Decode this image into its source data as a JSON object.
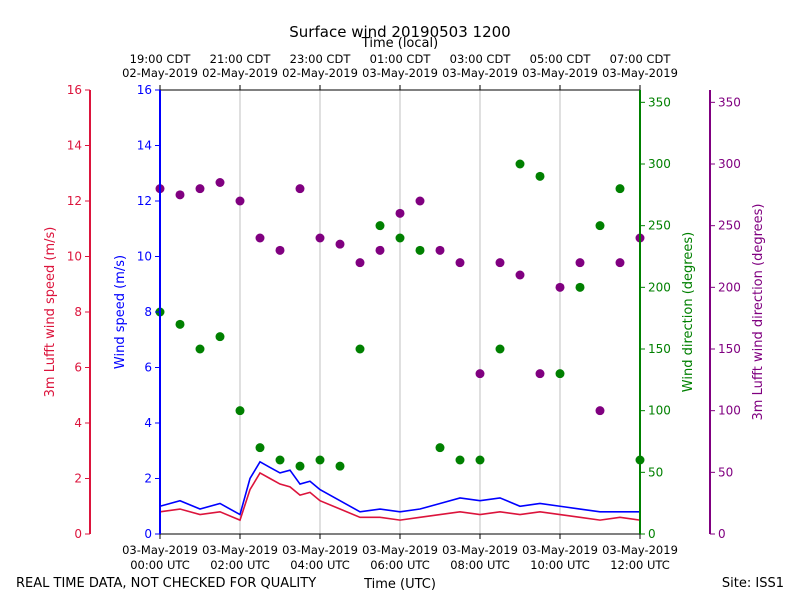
{
  "chart_data": {
    "type": "scatter",
    "title": "Surface wind 20190503 1200",
    "top_axis_label": "Time (local)",
    "bottom_axis_label": "Time (UTC)",
    "footer_left": "REAL TIME DATA, NOT CHECKED FOR QUALITY",
    "footer_right": "Site: ISS1",
    "x_utc_hours_range": [
      0,
      12
    ],
    "bottom_ticks": [
      {
        "h": 0,
        "date": "03-May-2019",
        "time": "00:00 UTC"
      },
      {
        "h": 2,
        "date": "03-May-2019",
        "time": "02:00 UTC"
      },
      {
        "h": 4,
        "date": "03-May-2019",
        "time": "04:00 UTC"
      },
      {
        "h": 6,
        "date": "03-May-2019",
        "time": "06:00 UTC"
      },
      {
        "h": 8,
        "date": "03-May-2019",
        "time": "08:00 UTC"
      },
      {
        "h": 10,
        "date": "03-May-2019",
        "time": "10:00 UTC"
      },
      {
        "h": 12,
        "date": "03-May-2019",
        "time": "12:00 UTC"
      }
    ],
    "top_ticks": [
      {
        "h": 0,
        "time": "19:00 CDT",
        "date": "02-May-2019"
      },
      {
        "h": 2,
        "time": "21:00 CDT",
        "date": "02-May-2019"
      },
      {
        "h": 4,
        "time": "23:00 CDT",
        "date": "02-May-2019"
      },
      {
        "h": 6,
        "time": "01:00 CDT",
        "date": "03-May-2019"
      },
      {
        "h": 8,
        "time": "03:00 CDT",
        "date": "03-May-2019"
      },
      {
        "h": 10,
        "time": "05:00 CDT",
        "date": "03-May-2019"
      },
      {
        "h": 12,
        "time": "07:00 CDT",
        "date": "03-May-2019"
      }
    ],
    "axes": {
      "lufft_speed": {
        "label": "3m Lufft wind speed (m/s)",
        "color": "#dc143c",
        "ylim": [
          0,
          16
        ],
        "ticks": [
          0,
          2,
          4,
          6,
          8,
          10,
          12,
          14,
          16
        ]
      },
      "wind_speed": {
        "label": "Wind speed (m/s)",
        "color": "#0000ff",
        "ylim": [
          0,
          16
        ],
        "ticks": [
          0,
          2,
          4,
          6,
          8,
          10,
          12,
          14,
          16
        ]
      },
      "wind_dir": {
        "label": "Wind direction (degrees)",
        "color": "#008000",
        "ylim": [
          0,
          360
        ],
        "ticks": [
          0,
          50,
          100,
          150,
          200,
          250,
          300,
          350
        ]
      },
      "lufft_dir": {
        "label": "3m Lufft wind direction (degrees)",
        "color": "#800080",
        "ylim": [
          0,
          360
        ],
        "ticks": [
          0,
          50,
          100,
          150,
          200,
          250,
          300,
          350
        ]
      }
    },
    "series": [
      {
        "name": "Wind speed",
        "axis": "wind_speed",
        "style": "line",
        "x": [
          0,
          0.5,
          1,
          1.5,
          2,
          2.25,
          2.5,
          2.75,
          3,
          3.25,
          3.5,
          3.75,
          4,
          4.5,
          5,
          5.5,
          6,
          6.5,
          7,
          7.5,
          8,
          8.5,
          9,
          9.5,
          10,
          10.5,
          11,
          11.5,
          12
        ],
        "values": [
          1.0,
          1.2,
          0.9,
          1.1,
          0.7,
          2.0,
          2.6,
          2.4,
          2.2,
          2.3,
          1.8,
          1.9,
          1.6,
          1.2,
          0.8,
          0.9,
          0.8,
          0.9,
          1.1,
          1.3,
          1.2,
          1.3,
          1.0,
          1.1,
          1.0,
          0.9,
          0.8,
          0.8,
          0.8
        ]
      },
      {
        "name": "3m Lufft wind speed",
        "axis": "lufft_speed",
        "style": "line",
        "x": [
          0,
          0.5,
          1,
          1.5,
          2,
          2.25,
          2.5,
          2.75,
          3,
          3.25,
          3.5,
          3.75,
          4,
          4.5,
          5,
          5.5,
          6,
          6.5,
          7,
          7.5,
          8,
          8.5,
          9,
          9.5,
          10,
          10.5,
          11,
          11.5,
          12
        ],
        "values": [
          0.8,
          0.9,
          0.7,
          0.8,
          0.5,
          1.6,
          2.2,
          2.0,
          1.8,
          1.7,
          1.4,
          1.5,
          1.2,
          0.9,
          0.6,
          0.6,
          0.5,
          0.6,
          0.7,
          0.8,
          0.7,
          0.8,
          0.7,
          0.8,
          0.7,
          0.6,
          0.5,
          0.6,
          0.5
        ]
      },
      {
        "name": "Wind direction",
        "axis": "wind_dir",
        "style": "scatter",
        "x": [
          0,
          0.5,
          1,
          1.5,
          2,
          2.5,
          3,
          3.5,
          4,
          4.5,
          5,
          5.5,
          6,
          6.5,
          7,
          7.5,
          8,
          8.5,
          9,
          9.5,
          10,
          10.5,
          11,
          11.5,
          12
        ],
        "values": [
          180,
          170,
          150,
          160,
          100,
          70,
          60,
          55,
          60,
          55,
          150,
          250,
          240,
          230,
          70,
          60,
          60,
          150,
          300,
          290,
          130,
          200,
          250,
          280,
          60
        ]
      },
      {
        "name": "3m Lufft wind direction",
        "axis": "lufft_dir",
        "style": "scatter",
        "x": [
          0,
          0.5,
          1,
          1.5,
          2,
          2.5,
          3,
          3.5,
          4,
          4.5,
          5,
          5.5,
          6,
          6.5,
          7,
          7.5,
          8,
          8.5,
          9,
          9.5,
          10,
          10.5,
          11,
          11.5,
          12
        ],
        "values": [
          280,
          275,
          280,
          285,
          270,
          240,
          230,
          280,
          240,
          235,
          220,
          230,
          260,
          270,
          230,
          220,
          130,
          220,
          210,
          130,
          200,
          220,
          100,
          220,
          240
        ]
      }
    ]
  }
}
